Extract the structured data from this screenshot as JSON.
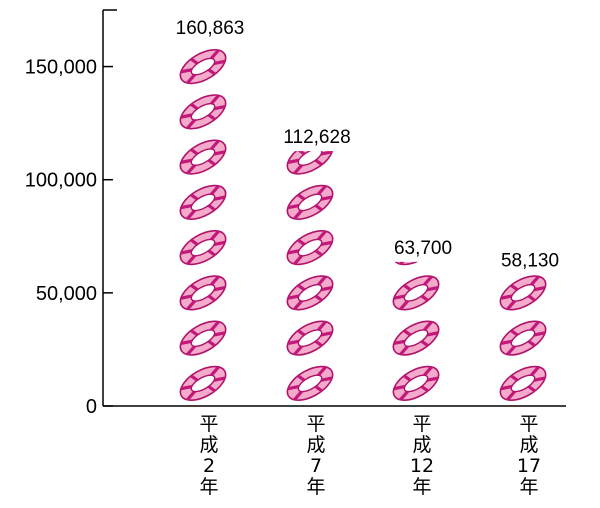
{
  "chart_data": {
    "type": "bar",
    "categories": [
      "平成2年",
      "平成7年",
      "平成12年",
      "平成17年"
    ],
    "category_label_lines": [
      [
        "平",
        "成",
        "2",
        "年"
      ],
      [
        "平",
        "成",
        "7",
        "年"
      ],
      [
        "平",
        "成",
        "12",
        "年"
      ],
      [
        "平",
        "成",
        "17",
        "年"
      ]
    ],
    "values": [
      160863,
      112628,
      63700,
      58130
    ],
    "value_labels": [
      "160,863",
      "112,628",
      "63,700",
      "58,130"
    ],
    "yticks": [
      0,
      50000,
      100000,
      150000
    ],
    "ytick_labels": [
      "0",
      "50,000",
      "100,000",
      "150,000"
    ],
    "ylim": [
      0,
      175000
    ],
    "units_per_icon": 20000,
    "icon": "swim-ring-icon",
    "colors": {
      "ring_fill": "#f4aacb",
      "ring_stroke": "#b0126a",
      "stripe": "#c2187a",
      "axis": "#000000"
    },
    "grid": false,
    "legend": "none"
  }
}
